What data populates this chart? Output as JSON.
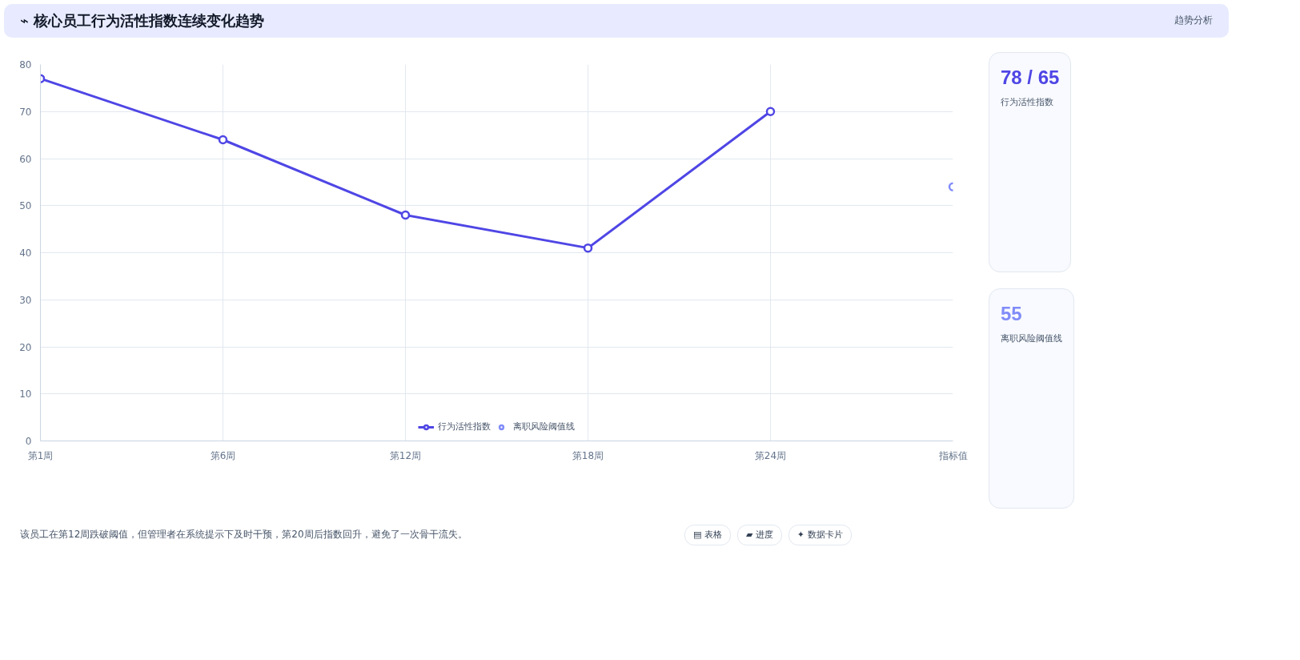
{
  "chart_data": {
    "type": "line",
    "title": "⌁ 核心员工行为活性指数连续变化趋势",
    "categories": [
      "第1周",
      "第6周",
      "第12周",
      "第18周",
      "第24周",
      "指标值"
    ],
    "series": [
      {
        "name": "行为活性指数",
        "color": "#4f46e5",
        "values": [
          77,
          64,
          48,
          41,
          70,
          null
        ]
      },
      {
        "name": "离职风险阈值线",
        "color": "#818cf8",
        "values": [
          null,
          null,
          null,
          null,
          null,
          54
        ]
      }
    ],
    "ylim": [
      0,
      80
    ],
    "yticks": [
      0,
      10,
      20,
      30,
      40,
      50,
      60,
      70,
      80
    ],
    "grid": true,
    "legend": "bottom",
    "marker": "circle",
    "line_style": "solid",
    "annotations": [
      "趋势分析",
      "78 / 65",
      "行为活性指数",
      "55",
      "离职风险阈值线",
      "该员工在第12周跌破阈值，但管理者在系统提示下及时干预，第20周后指数回升，避免了一次骨干流失。",
      "▤ 表格",
      "▰ 进度",
      "✦ 数据卡片"
    ]
  }
}
